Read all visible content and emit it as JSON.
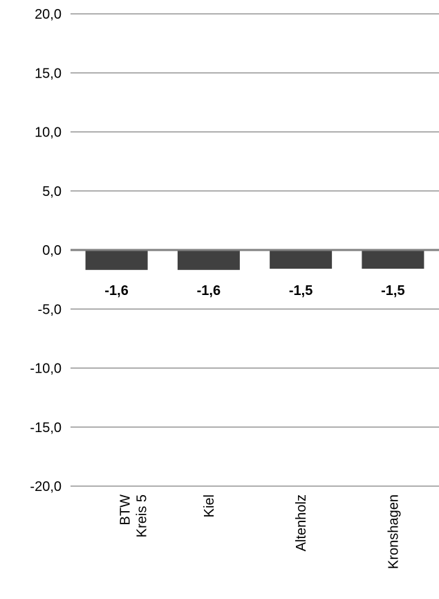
{
  "chart_data": {
    "type": "bar",
    "categories": [
      [
        "BTW",
        "Kreis 5"
      ],
      [
        "Kiel"
      ],
      [
        "Altenholz"
      ],
      [
        "Kronshagen"
      ]
    ],
    "values": [
      -1.6,
      -1.6,
      -1.5,
      -1.5
    ],
    "value_labels": [
      "-1,6",
      "-1,6",
      "-1,5",
      "-1,5"
    ],
    "yticks": [
      20,
      15,
      10,
      5,
      0,
      -5,
      -10,
      -15,
      -20
    ],
    "ytick_labels": [
      "20,0",
      "15,0",
      "10,0",
      "5,0",
      "0,0",
      "-5,0",
      "-10,0",
      "-15,0",
      "-20,0"
    ],
    "ylim": [
      -20,
      20
    ],
    "grid": true,
    "bar_color": "#404040",
    "grid_color": "#808080",
    "title": "",
    "xlabel": "",
    "ylabel": ""
  }
}
